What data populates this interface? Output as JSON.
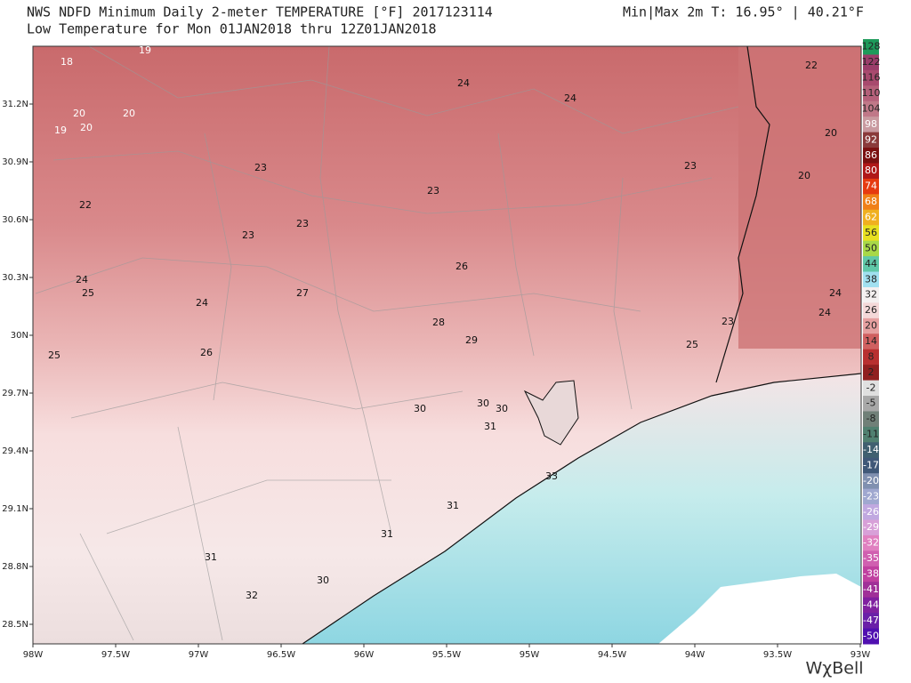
{
  "header": {
    "title": "NWS NDFD Minimum Daily 2-meter TEMPERATURE [°F]  2017123114",
    "minmax": "Min|Max 2m T:  16.95°  | 40.21°F",
    "subtitle": "Low Temperature for Mon 01JAN2018 thru 12Z01JAN2018"
  },
  "lat_labels": [
    "31.2N",
    "30.9N",
    "30.6N",
    "30.3N",
    "30N",
    "29.7N",
    "29.4N",
    "29.1N",
    "28.8N",
    "28.5N"
  ],
  "lon_labels": [
    "98W",
    "97.5W",
    "97W",
    "96.5W",
    "96W",
    "95.5W",
    "95W",
    "94.5W",
    "94W",
    "93.5W",
    "93W"
  ],
  "map_labels": [
    "18",
    "19",
    "22",
    "24",
    "24",
    "20",
    "20",
    "19",
    "20",
    "20",
    "23",
    "23",
    "20",
    "23",
    "22",
    "23",
    "23",
    "26",
    "24",
    "25",
    "27",
    "24",
    "24",
    "24",
    "28",
    "23",
    "29",
    "25",
    "25",
    "26",
    "30",
    "30",
    "30",
    "31",
    "33",
    "31",
    "31",
    "31",
    "30",
    "32"
  ],
  "colorbar_labels": [
    "128",
    "122",
    "116",
    "110",
    "104",
    "98",
    "92",
    "86",
    "80",
    "74",
    "68",
    "62",
    "56",
    "50",
    "44",
    "38",
    "32",
    "26",
    "20",
    "14",
    "8",
    "2",
    "-2",
    "-5",
    "-8",
    "-11",
    "-14",
    "-17",
    "-20",
    "-23",
    "-26",
    "-29",
    "-32",
    "-35",
    "-38",
    "-41",
    "-44",
    "-47",
    "-50"
  ],
  "logo": "WχBell"
}
